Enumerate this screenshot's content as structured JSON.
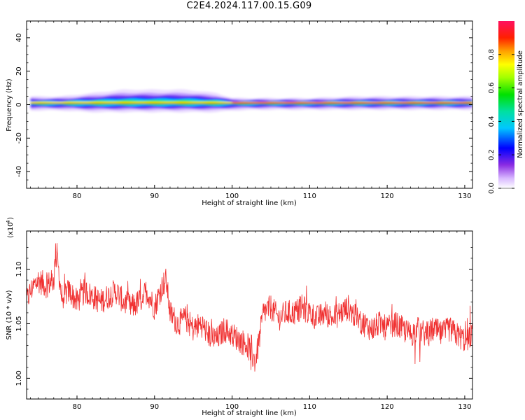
{
  "title": "C2E4.2024.117.00.15.G09",
  "spectrogram": {
    "type": "heatmap",
    "xlabel": "Height of straight line (km)",
    "ylabel": "Frequency (Hz)",
    "xlim": [
      73.5,
      131
    ],
    "ylim": [
      -50,
      50
    ],
    "xticks": [
      80,
      90,
      100,
      110,
      120,
      130
    ],
    "yticks": [
      -40,
      -20,
      0,
      20,
      40
    ],
    "colorbar": {
      "label": "Normalized spectral amplitude",
      "ticks": [
        "0.0",
        "0.2",
        "0.4",
        "0.6",
        "0.8"
      ],
      "range": [
        0,
        1
      ]
    }
  },
  "chart_data": [
    {
      "type": "heatmap",
      "title": "C2E4.2024.117.00.15.G09",
      "xlabel": "Height of straight line (km)",
      "ylabel": "Frequency (Hz)",
      "xlim": [
        73.5,
        131
      ],
      "ylim": [
        -50,
        50
      ],
      "band_center_hz": 1,
      "band_profile": {
        "height_km": [
          74,
          78,
          82,
          86,
          90,
          94,
          98,
          100,
          104,
          110,
          116,
          120,
          126,
          131
        ],
        "lower_hz": [
          -0.5,
          -0.5,
          -1,
          -1,
          -1,
          -1,
          -1,
          -0.5,
          -0.3,
          -0.3,
          -0.3,
          -0.3,
          -0.3,
          -0.3
        ],
        "upper_hz": [
          3,
          3,
          4,
          5,
          5,
          5,
          4,
          2.5,
          2.5,
          2.5,
          3,
          3,
          3,
          3
        ]
      }
    },
    {
      "type": "line",
      "xlabel": "Height of straight line (km)",
      "ylabel": "SNR (10 * v/v)",
      "y_scale_label": "(x10",
      "y_scale_exp": "4",
      "xlim": [
        73.5,
        131
      ],
      "ylim": [
        0.981,
        1.135
      ],
      "xticks": [
        80,
        90,
        100,
        110,
        120,
        130
      ],
      "yticks": [
        "1.00",
        "1.05",
        "1.10"
      ],
      "series": [
        {
          "color": "#f03030",
          "x": [
            73.5,
            74,
            75,
            76,
            77,
            77.3,
            78,
            79,
            80,
            81,
            82,
            83,
            84,
            85,
            86,
            87,
            88,
            89,
            90,
            91,
            91.5,
            92,
            93,
            94,
            95,
            96,
            97,
            98,
            99,
            100,
            101,
            102,
            103,
            103.5,
            104,
            105,
            106,
            107,
            108,
            109,
            110,
            111,
            112,
            113,
            114,
            115,
            116,
            117,
            118,
            119,
            120,
            121,
            122,
            123,
            124,
            125,
            126,
            127,
            128,
            129,
            130,
            131
          ],
          "y": [
            1.07,
            1.08,
            1.09,
            1.085,
            1.09,
            1.12,
            1.075,
            1.08,
            1.07,
            1.08,
            1.075,
            1.07,
            1.075,
            1.08,
            1.07,
            1.065,
            1.07,
            1.08,
            1.065,
            1.085,
            1.09,
            1.06,
            1.05,
            1.055,
            1.045,
            1.05,
            1.04,
            1.035,
            1.045,
            1.04,
            1.035,
            1.03,
            1.015,
            1.035,
            1.06,
            1.065,
            1.055,
            1.06,
            1.06,
            1.065,
            1.06,
            1.055,
            1.06,
            1.055,
            1.06,
            1.065,
            1.055,
            1.05,
            1.045,
            1.05,
            1.045,
            1.05,
            1.045,
            1.04,
            1.045,
            1.04,
            1.045,
            1.04,
            1.045,
            1.04,
            1.035,
            1.04
          ],
          "noise_amplitude": 0.012
        }
      ]
    }
  ]
}
